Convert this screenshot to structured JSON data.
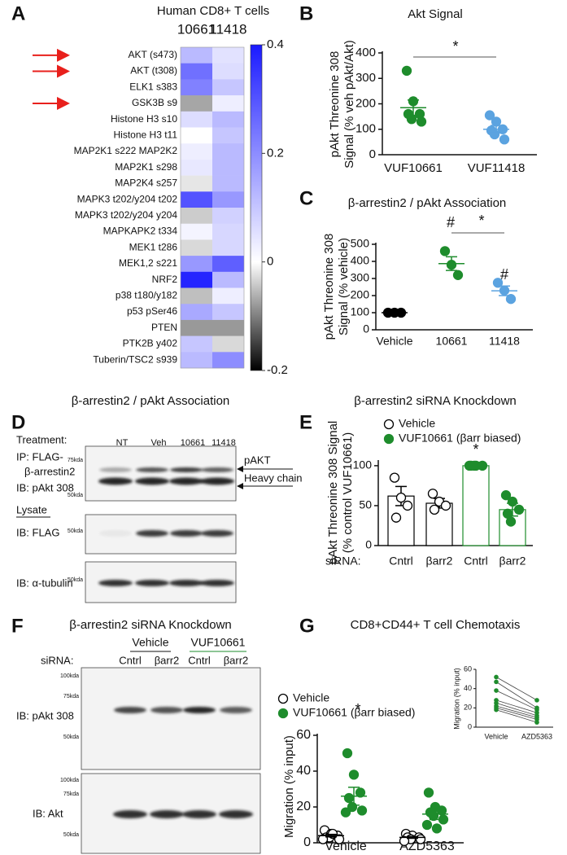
{
  "chart_data": [
    {
      "type": "heatmap",
      "panel": "A",
      "title": "Human CD8+ T cells",
      "categories": [
        "AKT (s473)",
        "AKT (t308)",
        "ELK1 s383",
        "GSK3B s9",
        "Histone H3 s10",
        "Histone H3 t11",
        "MAP2K1 s222 MAP2K2",
        "MAP2K1 s298",
        "MAP2K4 s257",
        "MAPK3 t202/y204 t202",
        "MAPK3 t202/y204 y204",
        "MAPKAPK2 t334",
        "MEK1 t286",
        "MEK1,2 s221",
        "NRF2",
        "p38 t180/y182",
        "p53 pSer46",
        "PTEN",
        "PTK2B y402",
        "Tuberin/TSC2 s939"
      ],
      "series": [
        {
          "name": "10661",
          "color": "#1e8c2c",
          "values": [
            0.12,
            0.25,
            0.22,
            -0.07,
            0.06,
            0.0,
            0.03,
            0.04,
            -0.02,
            0.3,
            -0.04,
            0.02,
            -0.03,
            0.18,
            0.38,
            -0.05,
            0.15,
            -0.08,
            0.1,
            0.12
          ]
        },
        {
          "name": "11418",
          "color": "#5ba3e0",
          "values": [
            0.05,
            0.06,
            0.1,
            0.03,
            0.12,
            0.1,
            0.12,
            0.12,
            0.12,
            0.18,
            0.08,
            0.07,
            0.07,
            0.28,
            0.12,
            0.03,
            0.1,
            -0.08,
            -0.03,
            0.2
          ]
        }
      ],
      "clim": [
        -0.2,
        0.4
      ],
      "cticks": [
        0.4,
        0.2,
        0,
        -0.2
      ],
      "colors": [
        "#000000",
        "#ffffff",
        "#1a1aff"
      ]
    },
    {
      "type": "dotplot",
      "panel": "B",
      "title": "Akt Signal",
      "ylabel": [
        "pAkt Threonine 308",
        "Signal (% veh pAkt/Akt)"
      ],
      "categories": [
        "VUF10661",
        "VUF11418"
      ],
      "series": [
        {
          "colors": [
            "#1e8c2c",
            "#5ba3e0"
          ],
          "points": [
            [
              330,
              210,
              160,
              160,
              140,
              130
            ],
            [
              155,
              130,
              100,
              95,
              80,
              60
            ]
          ],
          "means": [
            185,
            100
          ],
          "sems": [
            30,
            15
          ]
        }
      ],
      "ylim": [
        0,
        400
      ],
      "yticks": [
        0,
        100,
        200,
        300,
        400
      ],
      "annotations": [
        "*"
      ]
    },
    {
      "type": "dotplot",
      "panel": "C",
      "title": "β-arrestin2 / pAkt Association",
      "ylabel": [
        "pAkt Threonine 308",
        "Signal (% vehicle)"
      ],
      "categories": [
        "Vehicle",
        "10661",
        "11418"
      ],
      "series": [
        {
          "colors": [
            "#000000",
            "#1e8c2c",
            "#5ba3e0"
          ],
          "points": [
            [
              100,
              100,
              100
            ],
            [
              460,
              380,
              320
            ],
            [
              275,
              230,
              180
            ]
          ],
          "means": [
            100,
            387,
            228
          ],
          "sems": [
            0,
            40,
            28
          ]
        }
      ],
      "ylim": [
        0,
        500
      ],
      "yticks": [
        0,
        100,
        200,
        300,
        400,
        500
      ],
      "annotations": [
        "#",
        "#",
        "*"
      ]
    },
    {
      "type": "bar",
      "panel": "E",
      "title": "β-arrestin2 siRNA Knockdown",
      "ylabel": [
        "pAkt Threonine 308 Signal",
        "(% control VUF10661)"
      ],
      "xlabel": "siRNA:",
      "categories": [
        "Cntrl",
        "βarr2",
        "Cntrl",
        "βarr2"
      ],
      "series": [
        {
          "name": "Vehicle",
          "color": "#000000",
          "marker": "open",
          "values": [
            62,
            53,
            null,
            null
          ],
          "errors": [
            12,
            6,
            null,
            null
          ],
          "points": [
            [
              85,
              60,
              50,
              35
            ],
            [
              65,
              55,
              50,
              45
            ],
            null,
            null
          ]
        },
        {
          "name": "VUF10661 (βarr biased)",
          "color": "#1e8c2c",
          "marker": "filled",
          "values": [
            null,
            null,
            100,
            45
          ],
          "errors": [
            null,
            null,
            0,
            8
          ],
          "points": [
            null,
            null,
            [
              100,
              100,
              100,
              100,
              100
            ],
            [
              63,
              55,
              45,
              40,
              30
            ]
          ]
        }
      ],
      "ylim": [
        0,
        105
      ],
      "yticks": [
        0,
        50,
        100
      ],
      "annotations": [
        "*"
      ]
    },
    {
      "type": "dotplot",
      "panel": "G",
      "title": "CD8+CD44+ T cell Chemotaxis",
      "ylabel": "Migration (% input)",
      "categories": [
        "Vehicle",
        "AZD5363"
      ],
      "series": [
        {
          "name": "Vehicle",
          "color": "#000000",
          "marker": "open",
          "points": [
            [
              7,
              5,
              4,
              3,
              3,
              2,
              2,
              5
            ],
            [
              5,
              4,
              3,
              3,
              2,
              2,
              1
            ]
          ],
          "means": [
            4,
            3
          ],
          "sems": [
            0.7,
            0.5
          ]
        },
        {
          "name": "VUF10661 (βarr biased)",
          "color": "#1e8c2c",
          "marker": "filled",
          "points": [
            [
              50,
              38,
              28,
              25,
              20,
              18,
              17
            ],
            [
              28,
              20,
              18,
              17,
              15,
              13,
              10,
              8
            ]
          ],
          "means": [
            26,
            16
          ],
          "sems": [
            5,
            3
          ]
        }
      ],
      "ylim": [
        0,
        60
      ],
      "yticks": [
        0,
        20,
        40,
        60
      ],
      "annotations": [
        "*"
      ]
    },
    {
      "type": "line",
      "ylabel": "Migration (% input)",
      "categories": [
        "Vehicle",
        "AZD5363"
      ],
      "series": [
        {
          "color": "#1e8c2c",
          "values": [
            52,
            28
          ]
        },
        {
          "color": "#1e8c2c",
          "values": [
            47,
            20
          ]
        },
        {
          "color": "#1e8c2c",
          "values": [
            38,
            18
          ]
        },
        {
          "color": "#1e8c2c",
          "values": [
            28,
            15
          ]
        },
        {
          "color": "#1e8c2c",
          "values": [
            25,
            12
          ]
        },
        {
          "color": "#1e8c2c",
          "values": [
            22,
            10
          ]
        },
        {
          "color": "#1e8c2c",
          "values": [
            20,
            8
          ]
        },
        {
          "color": "#1e8c2c",
          "values": [
            18,
            5
          ]
        }
      ],
      "ylim": [
        0,
        60
      ],
      "yticks": [
        0,
        20,
        40,
        60
      ]
    }
  ],
  "blots": [
    {
      "panel": "D",
      "title": "β-arrestin2 / pAkt Association",
      "treatment": "Treatment:",
      "lanes": [
        "NT",
        "Veh",
        "10661",
        "11418"
      ],
      "labels": [
        "IP: FLAG-",
        "β-arrestin2",
        "IB: pAkt 308",
        "Lysate",
        "IB: FLAG",
        "IB: α-tubulin"
      ],
      "markers": [
        "75kda",
        "50kda",
        "50kda",
        "50kda"
      ],
      "bands": [
        "pAKT",
        "Heavy chain"
      ]
    },
    {
      "panel": "F",
      "title": "β-arrestin2 siRNA Knockdown",
      "groups": [
        "Vehicle",
        "VUF10661"
      ],
      "sirna": "siRNA:",
      "lanes": [
        "Cntrl",
        "βarr2",
        "Cntrl",
        "βarr2"
      ],
      "labels": [
        "IB: pAkt 308",
        "IB: Akt"
      ],
      "markers": [
        "100kda",
        "75kda",
        "50kda",
        "100kda",
        "75kda",
        "50kda"
      ]
    }
  ]
}
